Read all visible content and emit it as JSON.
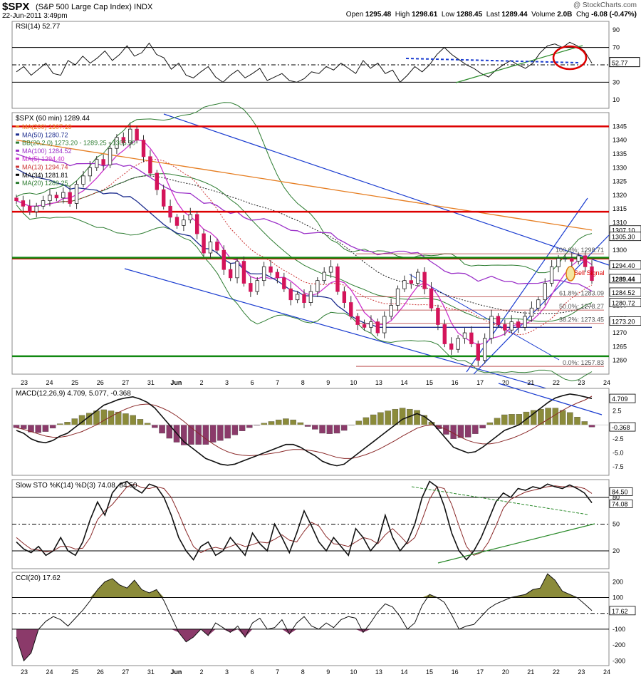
{
  "header": {
    "symbol": "$SPX",
    "name": "(S&P 500 Large Cap Index)",
    "exchange": "INDX",
    "datetime": "22-Jun-2011 3:49pm",
    "credit": "@ StockCharts.com",
    "open_label": "Open",
    "open": "1295.48",
    "high_label": "High",
    "high": "1298.61",
    "low_label": "Low",
    "low": "1288.45",
    "last_label": "Last",
    "last": "1289.44",
    "volume_label": "Volume",
    "volume": "2.0B",
    "chg_label": "Chg",
    "chg": "-6.08 (-0.47%)"
  },
  "chart_data": [
    {
      "type": "line",
      "panel": "rsi",
      "title": "RSI(14) 52.77",
      "yticks": [
        90,
        70,
        52.77,
        30,
        10
      ],
      "ylim": [
        0,
        100
      ],
      "reference_lines": [
        70,
        50,
        30
      ],
      "last_value": "52.77",
      "series": [
        {
          "name": "RSI(14)",
          "values": [
            42,
            48,
            38,
            45,
            52,
            40,
            38,
            55,
            50,
            60,
            52,
            58,
            66,
            55,
            62,
            72,
            60,
            64,
            75,
            62,
            58,
            45,
            52,
            38,
            35,
            42,
            48,
            36,
            30,
            38,
            44,
            35,
            40,
            46,
            32,
            36,
            40,
            32,
            30,
            34,
            42,
            40,
            48,
            44,
            52,
            46,
            40,
            55,
            46,
            52,
            40,
            44,
            30,
            38,
            48,
            42,
            50,
            62,
            70,
            62,
            56,
            50,
            46,
            40,
            36,
            44,
            50,
            55,
            50,
            46,
            52,
            64,
            72,
            74,
            70,
            76,
            72,
            66,
            52
          ]
        }
      ]
    },
    {
      "type": "candlestick",
      "panel": "price",
      "title": "$SPX (60 min) 1289.44",
      "ylim": [
        1255,
        1350
      ],
      "yticks": [
        1345,
        1340,
        1335,
        1330,
        1325,
        1320,
        1315,
        1310,
        1305,
        1300,
        1295,
        1290,
        1285,
        1280,
        1275,
        1270,
        1265,
        1260
      ],
      "x_tick_labels": [
        "23",
        "24",
        "25",
        "26",
        "27",
        "31",
        "Jun",
        "2",
        "3",
        "6",
        "7",
        "8",
        "9",
        "10",
        "13",
        "14",
        "15",
        "16",
        "17",
        "20",
        "21",
        "22",
        "23",
        "24"
      ],
      "legend": [
        {
          "label": "MA(200) 1307.10",
          "color": "#e67e22"
        },
        {
          "label": "MA(50) 1280.72",
          "color": "#1f2f8f"
        },
        {
          "label": "BB(20,2.0) 1273.20 - 1289.25 - 1305.30",
          "color": "#2e7d32"
        },
        {
          "label": "MA(100) 1284.52",
          "color": "#9b30c8"
        },
        {
          "label": "MA(5) 1294.40",
          "color": "#cc33cc"
        },
        {
          "label": "MA(13) 1294.74",
          "color": "#cc3333"
        },
        {
          "label": "MA(34) 1281.81",
          "color": "#000000"
        },
        {
          "label": "MA(20) 1289.25",
          "color": "#2e7d32"
        }
      ],
      "closes": [
        1318,
        1316,
        1314,
        1316,
        1318,
        1320,
        1319,
        1321,
        1317,
        1324,
        1327,
        1330,
        1333,
        1331,
        1337,
        1341,
        1339,
        1344,
        1340,
        1334,
        1328,
        1322,
        1316,
        1312,
        1309,
        1311,
        1313,
        1306,
        1299,
        1303,
        1300,
        1293,
        1290,
        1296,
        1288,
        1285,
        1289,
        1294,
        1292,
        1290,
        1286,
        1282,
        1284,
        1281,
        1285,
        1289,
        1292,
        1294,
        1285,
        1281,
        1276,
        1273,
        1272,
        1274,
        1270,
        1276,
        1280,
        1286,
        1289,
        1288,
        1292,
        1286,
        1279,
        1273,
        1266,
        1264,
        1268,
        1270,
        1266,
        1260,
        1268,
        1276,
        1273,
        1271,
        1274,
        1272,
        1276,
        1279,
        1282,
        1288,
        1294,
        1297,
        1297,
        1296,
        1298,
        1294,
        1289
      ],
      "price_labels": [
        "1307.10",
        "1305.30",
        "1294.40",
        "1289.44",
        "1284.52",
        "1280.72",
        "1273.20"
      ],
      "horizontal_levels": [
        {
          "value": 1345,
          "color": "#dd0000"
        },
        {
          "value": 1314,
          "color": "#dd0000"
        },
        {
          "value": 1297,
          "color": "#dd0000"
        },
        {
          "value": 1297.3,
          "color": "#118811"
        },
        {
          "value": 1261.5,
          "color": "#118811"
        }
      ],
      "fibonacci": [
        {
          "label": "100.0%: 1298.71",
          "value": 1298.71
        },
        {
          "label": "61.8%: 1283.09",
          "value": 1283.09
        },
        {
          "label": "50.0%: 1278.27",
          "value": 1278.27
        },
        {
          "label": "38.2%: 1273.45",
          "value": 1273.45
        },
        {
          "label": "0.0%: 1257.83",
          "value": 1257.83
        }
      ],
      "annotation": "Sell Signal"
    },
    {
      "type": "bar",
      "panel": "macd",
      "title": "MACD(12,26,9) 4.709, 5.077, -0.368",
      "yticks": [
        2.5,
        0,
        -2.5,
        -5.0,
        -7.5
      ],
      "ylim": [
        -9,
        6.5
      ],
      "value_labels": [
        "4.709",
        "-0.368"
      ],
      "series": [
        {
          "name": "MACD",
          "values": [
            -1,
            -1.5,
            -2.5,
            -3,
            -3.2,
            -2.8,
            -2,
            -1.5,
            -0.5,
            0.5,
            1.5,
            2.5,
            3.5,
            4,
            4.5,
            4.8,
            5,
            4.6,
            4,
            3,
            1.5,
            0,
            -1.5,
            -3,
            -4,
            -5,
            -6,
            -6.5,
            -7,
            -7.2,
            -7,
            -6.5,
            -6,
            -5.5,
            -5,
            -4.5,
            -4,
            -3.5,
            -3.5,
            -4,
            -4.8,
            -5.5,
            -6.5,
            -7,
            -7.3,
            -7,
            -6,
            -5,
            -4,
            -3,
            -2,
            -1,
            0,
            1,
            1.5,
            2,
            1.5,
            0.5,
            -1,
            -2.5,
            -4,
            -4.5,
            -5,
            -4.8,
            -4,
            -3,
            -2,
            -1,
            -0.5,
            0,
            1,
            2,
            3,
            4,
            4.8,
            5.2,
            5.5,
            5.3,
            5,
            4.7
          ]
        },
        {
          "name": "Signal",
          "values": [
            -0.5,
            -0.8,
            -1.2,
            -1.6,
            -2,
            -2.2,
            -2.2,
            -2,
            -1.6,
            -1.2,
            -0.6,
            0,
            0.8,
            1.5,
            2.2,
            2.8,
            3.3,
            3.6,
            3.7,
            3.5,
            3,
            2.4,
            1.6,
            0.6,
            -0.5,
            -1.5,
            -2.5,
            -3.4,
            -4.2,
            -4.8,
            -5.2,
            -5.4,
            -5.5,
            -5.4,
            -5.3,
            -5.1,
            -4.9,
            -4.6,
            -4.4,
            -4.4,
            -4.5,
            -4.7,
            -5,
            -5.4,
            -5.8,
            -6,
            -6,
            -5.7,
            -5.3,
            -4.8,
            -4.2,
            -3.5,
            -2.8,
            -2,
            -1.3,
            -0.6,
            -0.2,
            0,
            -0.3,
            -0.8,
            -1.5,
            -2.2,
            -2.8,
            -3.2,
            -3.4,
            -3.4,
            -3.2,
            -2.8,
            -2.4,
            -1.9,
            -1.3,
            -0.6,
            0.2,
            1,
            1.8,
            2.6,
            3.3,
            3.9,
            4.4,
            5.1
          ]
        }
      ]
    },
    {
      "type": "line",
      "panel": "stochastic",
      "title": "Slow STO %K(14) %D(3) 74.08, 84.50",
      "yticks": [
        80,
        50,
        20
      ],
      "ylim": [
        0,
        100
      ],
      "reference_lines": [
        80,
        50,
        20
      ],
      "value_labels": [
        "84.50",
        "74.08"
      ],
      "series": [
        {
          "name": "%K",
          "values": [
            30,
            22,
            18,
            25,
            15,
            20,
            35,
            20,
            15,
            30,
            55,
            75,
            60,
            85,
            95,
            98,
            90,
            85,
            95,
            92,
            80,
            60,
            35,
            20,
            10,
            25,
            30,
            15,
            20,
            35,
            25,
            15,
            40,
            28,
            20,
            50,
            35,
            18,
            40,
            65,
            48,
            30,
            20,
            35,
            25,
            15,
            45,
            35,
            20,
            30,
            60,
            35,
            20,
            30,
            50,
            80,
            98,
            92,
            70,
            40,
            20,
            10,
            20,
            35,
            55,
            75,
            85,
            80,
            90,
            88,
            92,
            90,
            95,
            92,
            90,
            94,
            90,
            85,
            74
          ]
        },
        {
          "name": "%D",
          "values": [
            35,
            28,
            22,
            21,
            19,
            20,
            25,
            25,
            22,
            23,
            35,
            55,
            65,
            72,
            82,
            92,
            95,
            91,
            90,
            92,
            90,
            80,
            62,
            42,
            25,
            18,
            22,
            24,
            22,
            25,
            28,
            25,
            27,
            30,
            29,
            33,
            38,
            32,
            30,
            42,
            52,
            48,
            36,
            28,
            27,
            25,
            30,
            35,
            33,
            28,
            38,
            45,
            37,
            28,
            35,
            55,
            78,
            92,
            90,
            72,
            48,
            25,
            15,
            18,
            30,
            48,
            68,
            78,
            82,
            86,
            88,
            90,
            92,
            93,
            92,
            92,
            92,
            90,
            84.5
          ]
        }
      ]
    },
    {
      "type": "area",
      "panel": "cci",
      "title": "CCI(20) 17.62",
      "yticks": [
        200,
        100,
        17.62,
        -100,
        -200,
        -300
      ],
      "ylim": [
        -330,
        260
      ],
      "reference_lines": [
        100,
        0,
        -100
      ],
      "value_label": "17.62",
      "x_tick_labels": [
        "23",
        "24",
        "25",
        "26",
        "27",
        "31",
        "Jun",
        "2",
        "3",
        "6",
        "7",
        "8",
        "9",
        "10",
        "13",
        "14",
        "15",
        "16",
        "17",
        "20",
        "21",
        "22",
        "23",
        "24"
      ],
      "series": [
        {
          "name": "CCI(20)",
          "values": [
            -150,
            -300,
            -250,
            -100,
            -50,
            -20,
            -40,
            -80,
            -30,
            20,
            80,
            150,
            200,
            220,
            180,
            160,
            210,
            150,
            130,
            150,
            80,
            -20,
            -120,
            -180,
            -150,
            -100,
            -140,
            -60,
            -90,
            -120,
            -80,
            -150,
            -60,
            -30,
            -100,
            -90,
            -40,
            -130,
            -60,
            -20,
            -80,
            -100,
            -60,
            -90,
            -40,
            -20,
            -30,
            -120,
            -60,
            10,
            60,
            40,
            -20,
            -100,
            -60,
            50,
            120,
            100,
            70,
            -10,
            -100,
            -80,
            -70,
            -20,
            30,
            60,
            80,
            100,
            110,
            120,
            150,
            160,
            250,
            210,
            140,
            120,
            100,
            60,
            18
          ]
        }
      ]
    }
  ]
}
